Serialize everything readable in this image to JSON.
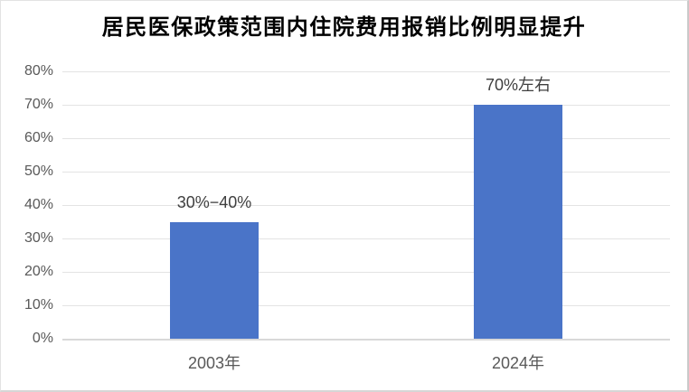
{
  "chart_data": {
    "type": "bar",
    "title": "居民医保政策范围内住院费用报销比例明显提升",
    "categories": [
      "2003年",
      "2024年"
    ],
    "values": [
      35,
      70
    ],
    "data_labels": [
      "30%−40%",
      "70%左右"
    ],
    "yticks": [
      "0%",
      "10%",
      "20%",
      "30%",
      "40%",
      "50%",
      "60%",
      "70%",
      "80%"
    ],
    "ylim": [
      0,
      80
    ],
    "ytick_step": 10,
    "grid": true,
    "legend": false,
    "colors": {
      "bar": "#4A74C8",
      "gridline": "#E3E3E3",
      "axis": "#D9D9D9",
      "tick_text": "#595959",
      "data_label_text": "#3F3F3F",
      "title_text": "#000000"
    }
  }
}
